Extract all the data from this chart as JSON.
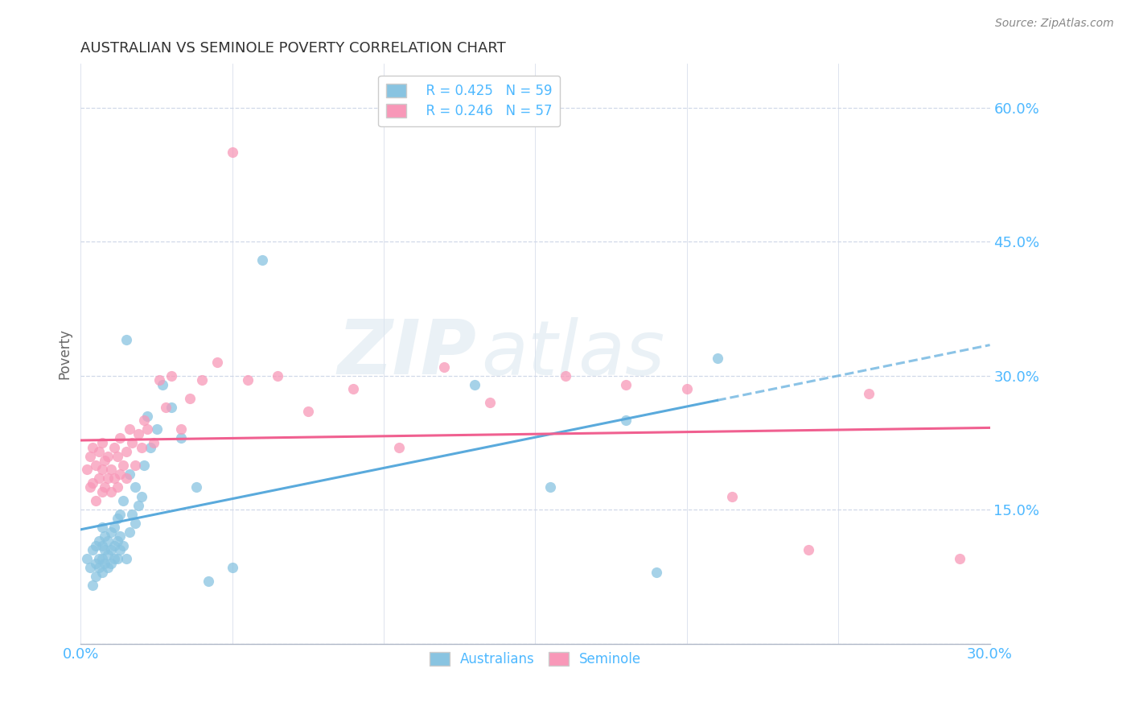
{
  "title": "AUSTRALIAN VS SEMINOLE POVERTY CORRELATION CHART",
  "source": "Source: ZipAtlas.com",
  "ylabel": "Poverty",
  "xlim": [
    0.0,
    0.3
  ],
  "ylim": [
    0.0,
    0.65
  ],
  "yticks": [
    0.0,
    0.15,
    0.3,
    0.45,
    0.6
  ],
  "xticks": [
    0.0,
    0.05,
    0.1,
    0.15,
    0.2,
    0.25,
    0.3
  ],
  "legend_r1": "R = 0.425",
  "legend_n1": "N = 59",
  "legend_r2": "R = 0.246",
  "legend_n2": "N = 57",
  "color_blue": "#89c4e1",
  "color_pink": "#f898b8",
  "color_blue_line": "#5aaadc",
  "color_pink_line": "#f06090",
  "color_axis_labels": "#4db8ff",
  "background": "#ffffff",
  "watermark_zip": "ZIP",
  "watermark_atlas": "atlas",
  "australian_x": [
    0.002,
    0.003,
    0.004,
    0.004,
    0.005,
    0.005,
    0.005,
    0.006,
    0.006,
    0.006,
    0.007,
    0.007,
    0.007,
    0.007,
    0.008,
    0.008,
    0.008,
    0.009,
    0.009,
    0.009,
    0.01,
    0.01,
    0.01,
    0.011,
    0.011,
    0.011,
    0.012,
    0.012,
    0.012,
    0.013,
    0.013,
    0.013,
    0.014,
    0.014,
    0.015,
    0.015,
    0.016,
    0.016,
    0.017,
    0.018,
    0.018,
    0.019,
    0.02,
    0.021,
    0.022,
    0.023,
    0.025,
    0.027,
    0.03,
    0.033,
    0.038,
    0.042,
    0.05,
    0.06,
    0.13,
    0.155,
    0.18,
    0.19,
    0.21
  ],
  "australian_y": [
    0.095,
    0.085,
    0.065,
    0.105,
    0.075,
    0.09,
    0.11,
    0.085,
    0.095,
    0.115,
    0.08,
    0.095,
    0.11,
    0.13,
    0.09,
    0.105,
    0.12,
    0.085,
    0.1,
    0.115,
    0.09,
    0.105,
    0.125,
    0.095,
    0.11,
    0.13,
    0.095,
    0.115,
    0.14,
    0.105,
    0.12,
    0.145,
    0.11,
    0.16,
    0.095,
    0.34,
    0.125,
    0.19,
    0.145,
    0.135,
    0.175,
    0.155,
    0.165,
    0.2,
    0.255,
    0.22,
    0.24,
    0.29,
    0.265,
    0.23,
    0.175,
    0.07,
    0.085,
    0.43,
    0.29,
    0.175,
    0.25,
    0.08,
    0.32
  ],
  "seminole_x": [
    0.002,
    0.003,
    0.003,
    0.004,
    0.004,
    0.005,
    0.005,
    0.006,
    0.006,
    0.007,
    0.007,
    0.007,
    0.008,
    0.008,
    0.009,
    0.009,
    0.01,
    0.01,
    0.011,
    0.011,
    0.012,
    0.012,
    0.013,
    0.013,
    0.014,
    0.015,
    0.015,
    0.016,
    0.017,
    0.018,
    0.019,
    0.02,
    0.021,
    0.022,
    0.024,
    0.026,
    0.028,
    0.03,
    0.033,
    0.036,
    0.04,
    0.045,
    0.05,
    0.055,
    0.065,
    0.075,
    0.09,
    0.105,
    0.12,
    0.135,
    0.16,
    0.18,
    0.2,
    0.215,
    0.24,
    0.26,
    0.29
  ],
  "seminole_y": [
    0.195,
    0.175,
    0.21,
    0.18,
    0.22,
    0.16,
    0.2,
    0.185,
    0.215,
    0.17,
    0.195,
    0.225,
    0.175,
    0.205,
    0.185,
    0.21,
    0.17,
    0.195,
    0.185,
    0.22,
    0.175,
    0.21,
    0.19,
    0.23,
    0.2,
    0.185,
    0.215,
    0.24,
    0.225,
    0.2,
    0.235,
    0.22,
    0.25,
    0.24,
    0.225,
    0.295,
    0.265,
    0.3,
    0.24,
    0.275,
    0.295,
    0.315,
    0.55,
    0.295,
    0.3,
    0.26,
    0.285,
    0.22,
    0.31,
    0.27,
    0.3,
    0.29,
    0.285,
    0.165,
    0.105,
    0.28,
    0.095
  ]
}
